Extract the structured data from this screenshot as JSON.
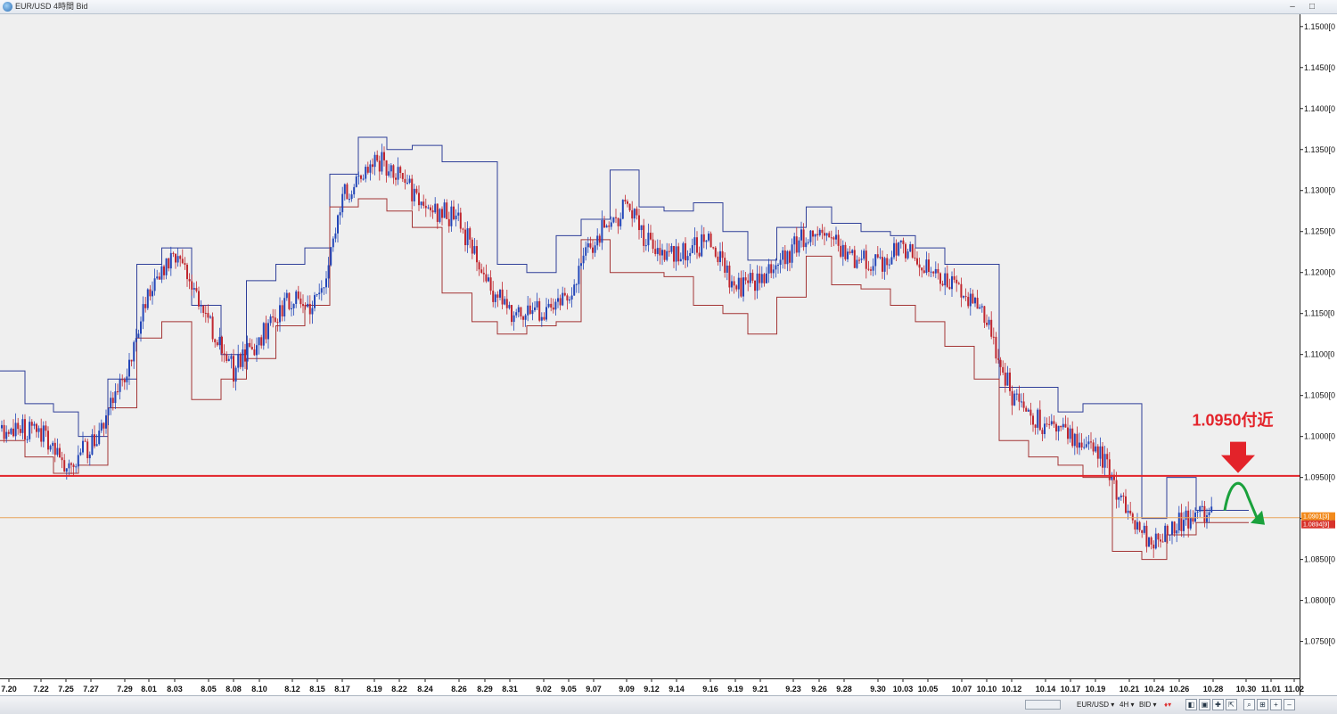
{
  "window": {
    "title": "EUR/USD 4時間 Bid",
    "minimize": "–",
    "maximize": "□"
  },
  "colors": {
    "background": "#efefef",
    "bull_candle": "#2346b8",
    "bear_candle": "#c0262e",
    "channel_upper": "#2f3f99",
    "channel_lower": "#a33434",
    "resistance_line": "#e3232a",
    "current_line": "#e8a45a",
    "annotation_text": "#e3232a",
    "arrow_green": "#1aa13c"
  },
  "chart_data": {
    "type": "candlestick",
    "ylim": [
      1.0705,
      1.1515
    ],
    "y_ticks": [
      {
        "value": 1.15,
        "label": "1.1500[0"
      },
      {
        "value": 1.145,
        "label": "1.1450[0"
      },
      {
        "value": 1.14,
        "label": "1.1400[0"
      },
      {
        "value": 1.135,
        "label": "1.1350[0"
      },
      {
        "value": 1.13,
        "label": "1.1300[0"
      },
      {
        "value": 1.125,
        "label": "1.1250[0"
      },
      {
        "value": 1.12,
        "label": "1.1200[0"
      },
      {
        "value": 1.115,
        "label": "1.1150[0"
      },
      {
        "value": 1.11,
        "label": "1.1100[0"
      },
      {
        "value": 1.105,
        "label": "1.1050[0"
      },
      {
        "value": 1.1,
        "label": "1.1000[0"
      },
      {
        "value": 1.095,
        "label": "1.0950[0"
      },
      {
        "value": 1.09,
        "label": "1.0900[0"
      },
      {
        "value": 1.085,
        "label": "1.0850[0"
      },
      {
        "value": 1.08,
        "label": "1.0800[0"
      },
      {
        "value": 1.075,
        "label": "1.0750[0"
      }
    ],
    "x_ticks": [
      "7.20",
      "7.22",
      "7.25",
      "7.27",
      "7.29",
      "8.01",
      "8.03",
      "8.05",
      "8.08",
      "8.10",
      "8.12",
      "8.15",
      "8.17",
      "8.19",
      "8.22",
      "8.24",
      "8.26",
      "8.29",
      "8.31",
      "9.02",
      "9.05",
      "9.07",
      "9.09",
      "9.12",
      "9.14",
      "9.16",
      "9.19",
      "9.21",
      "9.23",
      "9.26",
      "9.28",
      "9.30",
      "10.03",
      "10.05",
      "10.07",
      "10.10",
      "10.12",
      "10.14",
      "10.17",
      "10.19",
      "10.21",
      "10.24",
      "10.26",
      "10.28",
      "10.30",
      "11.01",
      "11.02"
    ],
    "price_path": [
      [
        "7.20",
        1.101
      ],
      [
        "7.22",
        1.1005
      ],
      [
        "7.25",
        1.0965
      ],
      [
        "7.27",
        1.099
      ],
      [
        "7.29",
        1.107
      ],
      [
        "8.01",
        1.118
      ],
      [
        "8.03",
        1.122
      ],
      [
        "8.05",
        1.114
      ],
      [
        "8.08",
        1.108
      ],
      [
        "8.10",
        1.112
      ],
      [
        "8.12",
        1.117
      ],
      [
        "8.15",
        1.116
      ],
      [
        "8.17",
        1.129
      ],
      [
        "8.19",
        1.134
      ],
      [
        "8.22",
        1.132
      ],
      [
        "8.24",
        1.128
      ],
      [
        "8.26",
        1.1265
      ],
      [
        "8.29",
        1.119
      ],
      [
        "8.31",
        1.115
      ],
      [
        "9.02",
        1.1155
      ],
      [
        "9.05",
        1.117
      ],
      [
        "9.07",
        1.124
      ],
      [
        "9.09",
        1.128
      ],
      [
        "9.12",
        1.123
      ],
      [
        "9.14",
        1.122
      ],
      [
        "9.16",
        1.124
      ],
      [
        "9.19",
        1.118
      ],
      [
        "9.21",
        1.119
      ],
      [
        "9.23",
        1.123
      ],
      [
        "9.26",
        1.126
      ],
      [
        "9.28",
        1.122
      ],
      [
        "9.30",
        1.121
      ],
      [
        "10.03",
        1.123
      ],
      [
        "10.05",
        1.121
      ],
      [
        "10.07",
        1.118
      ],
      [
        "10.10",
        1.114
      ],
      [
        "10.12",
        1.105
      ],
      [
        "10.14",
        1.101
      ],
      [
        "10.17",
        1.1
      ],
      [
        "10.19",
        1.099
      ],
      [
        "10.21",
        1.09
      ],
      [
        "10.24",
        1.087
      ],
      [
        "10.26",
        1.0895
      ],
      [
        "10.28",
        1.091
      ]
    ],
    "channel_upper": [
      [
        "7.20",
        1.108
      ],
      [
        "7.22",
        1.104
      ],
      [
        "7.25",
        1.103
      ],
      [
        "7.27",
        1.1
      ],
      [
        "7.29",
        1.107
      ],
      [
        "8.01",
        1.121
      ],
      [
        "8.03",
        1.123
      ],
      [
        "8.05",
        1.116
      ],
      [
        "8.08",
        1.11
      ],
      [
        "8.10",
        1.119
      ],
      [
        "8.12",
        1.121
      ],
      [
        "8.15",
        1.123
      ],
      [
        "8.17",
        1.132
      ],
      [
        "8.19",
        1.1365
      ],
      [
        "8.22",
        1.135
      ],
      [
        "8.24",
        1.1355
      ],
      [
        "8.26",
        1.1335
      ],
      [
        "8.29",
        1.1335
      ],
      [
        "8.31",
        1.121
      ],
      [
        "9.02",
        1.12
      ],
      [
        "9.05",
        1.1245
      ],
      [
        "9.07",
        1.1265
      ],
      [
        "9.09",
        1.1325
      ],
      [
        "9.12",
        1.128
      ],
      [
        "9.14",
        1.1275
      ],
      [
        "9.16",
        1.1285
      ],
      [
        "9.19",
        1.125
      ],
      [
        "9.21",
        1.1215
      ],
      [
        "9.23",
        1.1255
      ],
      [
        "9.26",
        1.128
      ],
      [
        "9.28",
        1.126
      ],
      [
        "9.30",
        1.125
      ],
      [
        "10.03",
        1.1245
      ],
      [
        "10.05",
        1.123
      ],
      [
        "10.07",
        1.121
      ],
      [
        "10.10",
        1.121
      ],
      [
        "10.12",
        1.106
      ],
      [
        "10.14",
        1.106
      ],
      [
        "10.17",
        1.103
      ],
      [
        "10.19",
        1.104
      ],
      [
        "10.21",
        1.104
      ],
      [
        "10.24",
        1.09
      ],
      [
        "10.26",
        1.095
      ],
      [
        "10.28",
        1.091
      ]
    ],
    "channel_lower": [
      [
        "7.20",
        1.0995
      ],
      [
        "7.22",
        1.0975
      ],
      [
        "7.25",
        1.0955
      ],
      [
        "7.27",
        1.0965
      ],
      [
        "7.29",
        1.1035
      ],
      [
        "8.01",
        1.112
      ],
      [
        "8.03",
        1.114
      ],
      [
        "8.05",
        1.1045
      ],
      [
        "8.08",
        1.107
      ],
      [
        "8.10",
        1.1095
      ],
      [
        "8.12",
        1.1135
      ],
      [
        "8.15",
        1.116
      ],
      [
        "8.17",
        1.128
      ],
      [
        "8.19",
        1.129
      ],
      [
        "8.22",
        1.1275
      ],
      [
        "8.24",
        1.1255
      ],
      [
        "8.26",
        1.1175
      ],
      [
        "8.29",
        1.114
      ],
      [
        "8.31",
        1.1125
      ],
      [
        "9.02",
        1.1135
      ],
      [
        "9.05",
        1.114
      ],
      [
        "9.07",
        1.124
      ],
      [
        "9.09",
        1.12
      ],
      [
        "9.12",
        1.12
      ],
      [
        "9.14",
        1.1195
      ],
      [
        "9.16",
        1.116
      ],
      [
        "9.19",
        1.115
      ],
      [
        "9.21",
        1.1125
      ],
      [
        "9.23",
        1.117
      ],
      [
        "9.26",
        1.122
      ],
      [
        "9.28",
        1.1185
      ],
      [
        "9.30",
        1.118
      ],
      [
        "10.03",
        1.116
      ],
      [
        "10.05",
        1.114
      ],
      [
        "10.07",
        1.111
      ],
      [
        "10.10",
        1.107
      ],
      [
        "10.12",
        1.0995
      ],
      [
        "10.14",
        1.0975
      ],
      [
        "10.17",
        1.0965
      ],
      [
        "10.19",
        1.095
      ],
      [
        "10.21",
        1.086
      ],
      [
        "10.24",
        1.085
      ],
      [
        "10.26",
        1.088
      ],
      [
        "10.28",
        1.0895
      ]
    ],
    "horizontal_lines": [
      {
        "name": "resistance",
        "value": 1.0952
      },
      {
        "name": "current-bid",
        "value": 1.0901
      }
    ],
    "price_tags": [
      "1.0901[3]",
      "1.0894[9]"
    ],
    "annotations": [
      {
        "text": "1.0950付近",
        "x": "10.30",
        "y": 1.1
      }
    ]
  },
  "toolbar": {
    "symbol": "EUR/USD ▾",
    "timeframe": "4H ▾",
    "price_type": "BID ▾",
    "buttons": [
      "◧",
      "▣",
      "✚",
      "⇱",
      "⌕",
      "⊞",
      "+",
      "–"
    ]
  }
}
